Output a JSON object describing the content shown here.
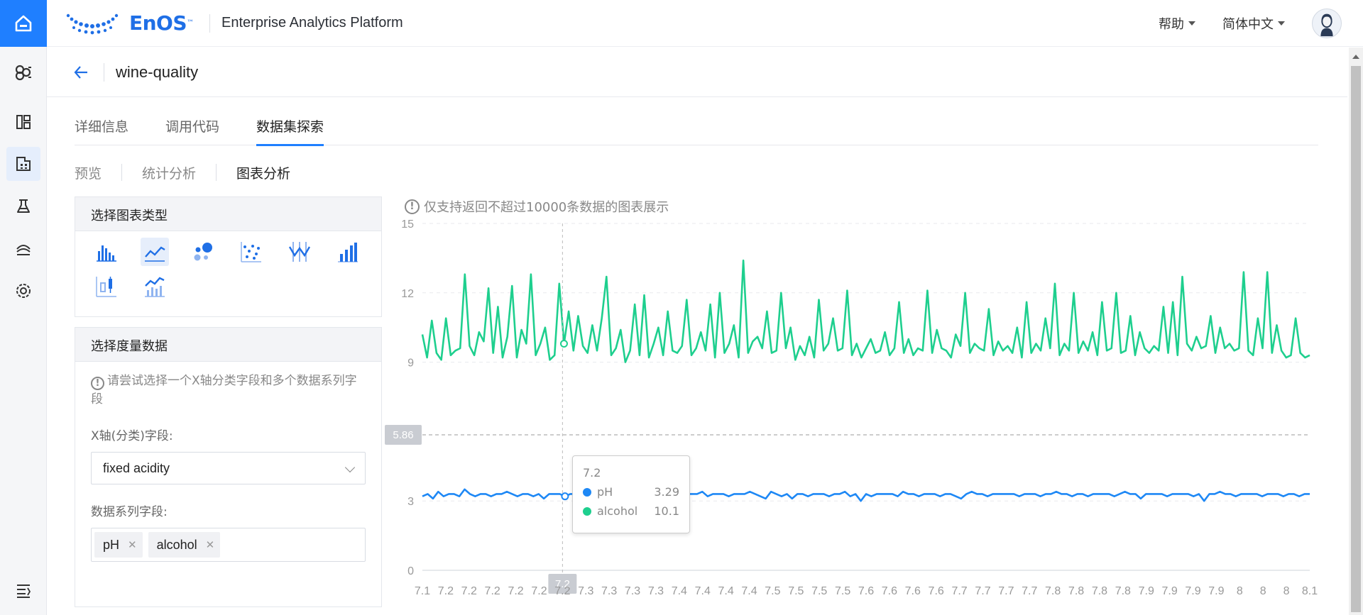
{
  "app": {
    "brand_name": "EnOS",
    "brand_tm": "™",
    "platform_name": "Enterprise Analytics Platform"
  },
  "topbar": {
    "help_label": "帮助",
    "language_label": "简体中文"
  },
  "nav": {
    "icons": [
      "home-icon",
      "model-icon",
      "dashboard-icon",
      "dataset-icon",
      "lab-icon",
      "deploy-icon",
      "settings-icon",
      "collapse-icon"
    ]
  },
  "page": {
    "title": "wine-quality"
  },
  "tabs": [
    {
      "label": "详细信息",
      "active": false
    },
    {
      "label": "调用代码",
      "active": false
    },
    {
      "label": "数据集探索",
      "active": true
    }
  ],
  "subtabs": [
    {
      "label": "预览",
      "active": false
    },
    {
      "label": "统计分析",
      "active": false
    },
    {
      "label": "图表分析",
      "active": true
    }
  ],
  "chart_type_panel": {
    "title": "选择图表类型",
    "types": [
      "bar-chart-icon",
      "line-chart-icon",
      "bubble-chart-icon",
      "scatter-chart-icon",
      "candlestick-chart-icon",
      "histogram-icon",
      "boxplot-icon",
      "combo-chart-icon"
    ],
    "selected": "line-chart-icon"
  },
  "measure_panel": {
    "title": "选择度量数据",
    "hint": "请尝试选择一个X轴分类字段和多个数据系列字段",
    "x_label": "X轴(分类)字段:",
    "x_value": "fixed acidity",
    "series_label": "数据系列字段:",
    "series_tags": [
      "pH",
      "alcohol"
    ]
  },
  "chart_notice": "仅支持返回不超过10000条数据的图表展示",
  "tooltip": {
    "category": "7.2",
    "rows": [
      {
        "name": "pH",
        "value": "3.29"
      },
      {
        "name": "alcohol",
        "value": "10.1"
      }
    ]
  },
  "chart_data": {
    "type": "line",
    "ylim": [
      0,
      15
    ],
    "y_ticks": [
      0,
      3,
      9,
      12,
      15
    ],
    "y_pointer_label": "5.86",
    "x_pointer_label": "7.2",
    "x_tick_labels": [
      "7.1",
      "7.2",
      "7.2",
      "7.2",
      "7.2",
      "7.2",
      "7.2",
      "7.3",
      "7.3",
      "7.3",
      "7.3",
      "7.4",
      "7.4",
      "7.4",
      "7.4",
      "7.5",
      "7.5",
      "7.5",
      "7.5",
      "7.6",
      "7.6",
      "7.6",
      "7.6",
      "7.7",
      "7.7",
      "7.7",
      "7.7",
      "7.8",
      "7.8",
      "7.8",
      "7.8",
      "7.9",
      "7.9",
      "7.9",
      "7.9",
      "8",
      "8",
      "8",
      "8.1"
    ],
    "legend": [
      "pH",
      "alcohol"
    ],
    "colors": {
      "pH": "#1e88f5",
      "alcohol": "#1ecf8e"
    },
    "series": [
      {
        "name": "pH",
        "values": [
          3.2,
          3.3,
          3.1,
          3.4,
          3.2,
          3.3,
          3.3,
          3.2,
          3.5,
          3.3,
          3.2,
          3.3,
          3.3,
          3.2,
          3.3,
          3.3,
          3.4,
          3.3,
          3.2,
          3.3,
          3.3,
          3.2,
          3.3,
          3.1,
          3.3,
          3.3,
          3.3,
          3.2,
          3.3,
          3.3,
          3.3,
          3.3,
          3.3,
          3.2,
          3.3,
          3.3,
          3.3,
          3.2,
          3.3,
          3.3,
          3.3,
          3.2,
          3.2,
          3.3,
          3.3,
          3.3,
          3.2,
          3.3,
          3.3,
          3.2,
          3.3,
          3.3,
          3.3,
          3.4,
          3.2,
          3.3,
          3.3,
          3.3,
          3.2,
          3.3,
          3.3,
          3.3,
          3.4,
          3.3,
          3.2,
          3.1,
          3.4,
          3.3,
          3.2,
          3.3,
          3.1,
          3.3,
          3.3,
          3.2,
          3.3,
          3.3,
          3.3,
          3.2,
          3.3,
          3.3,
          3.4,
          3.2,
          3.3,
          3.0,
          3.3,
          3.2,
          3.3,
          3.3,
          3.3,
          3.3,
          3.2,
          3.4,
          3.3,
          3.3,
          3.2,
          3.3,
          3.3,
          3.3,
          3.2,
          3.3,
          3.3,
          3.2,
          3.1,
          3.3,
          3.4,
          3.3,
          3.3,
          3.2,
          3.3,
          3.3,
          3.3,
          3.3,
          3.3,
          3.2,
          3.3,
          3.3,
          3.3,
          3.2,
          3.3,
          3.3,
          3.4,
          3.3,
          3.3,
          3.2,
          3.3,
          3.3,
          3.2,
          3.3,
          3.3,
          3.3,
          3.3,
          3.2,
          3.3,
          3.4,
          3.3,
          3.3,
          3.1,
          3.3,
          3.3,
          3.3,
          3.3,
          3.2,
          3.3,
          3.3,
          3.3,
          3.3,
          3.2,
          3.3,
          3.0,
          3.3,
          3.3,
          3.4,
          3.3,
          3.3,
          3.2,
          3.3,
          3.3,
          3.3,
          3.3,
          3.2,
          3.3,
          3.3,
          3.3,
          3.2,
          3.3,
          3.3,
          3.2,
          3.3,
          3.3
        ]
      },
      {
        "name": "alcohol",
        "values": [
          10.2,
          9.2,
          10.8,
          9.4,
          9.1,
          10.9,
          9.3,
          9.5,
          9.6,
          12.8,
          9.7,
          9.3,
          10.3,
          9.9,
          12.2,
          9.4,
          11.4,
          9.2,
          10.1,
          12.3,
          9.2,
          10.4,
          9.8,
          12.8,
          9.3,
          9.8,
          10.5,
          9.1,
          9.3,
          12.4,
          9.8,
          11.2,
          9.5,
          11.0,
          9.7,
          9.4,
          10.6,
          9.5,
          10.9,
          12.7,
          9.3,
          9.6,
          10.4,
          9.0,
          9.5,
          11.5,
          9.3,
          11.9,
          9.2,
          9.8,
          10.5,
          9.3,
          11.2,
          9.5,
          9.4,
          9.7,
          11.7,
          9.3,
          9.6,
          10.3,
          9.5,
          11.5,
          9.2,
          12.0,
          9.4,
          9.8,
          10.6,
          9.2,
          13.4,
          9.4,
          9.9,
          10.1,
          9.6,
          11.2,
          9.4,
          9.5,
          12.0,
          9.6,
          10.5,
          9.1,
          9.7,
          9.3,
          10.1,
          9.2,
          11.7,
          9.5,
          9.8,
          10.9,
          9.5,
          9.6,
          12.1,
          9.3,
          9.8,
          9.2,
          9.6,
          10.0,
          9.4,
          9.5,
          10.3,
          9.3,
          9.6,
          11.6,
          9.4,
          10.0,
          9.3,
          9.6,
          9.5,
          12.1,
          9.4,
          10.4,
          9.6,
          9.5,
          9.2,
          10.2,
          9.7,
          12.0,
          9.4,
          9.8,
          9.6,
          9.5,
          11.3,
          9.3,
          9.9,
          9.5,
          9.7,
          9.4,
          10.5,
          9.2,
          11.6,
          9.4,
          9.8,
          9.5,
          10.9,
          9.6,
          12.4,
          9.3,
          9.8,
          9.5,
          12.0,
          9.4,
          9.9,
          9.5,
          10.3,
          9.3,
          11.6,
          9.5,
          9.6,
          12.0,
          9.4,
          9.5,
          11.0,
          9.3,
          10.3,
          9.6,
          9.4,
          9.7,
          9.5,
          11.4,
          9.4,
          11.6,
          9.3,
          12.7,
          9.8,
          9.5,
          10.1,
          9.6,
          9.7,
          11.0,
          9.4,
          10.5,
          9.6,
          9.8,
          9.5,
          9.6,
          12.9,
          9.5,
          9.3,
          10.9,
          9.6,
          12.9,
          9.4,
          10.6,
          9.5,
          9.2,
          9.3,
          10.9,
          9.4,
          9.2,
          9.3
        ]
      }
    ]
  }
}
